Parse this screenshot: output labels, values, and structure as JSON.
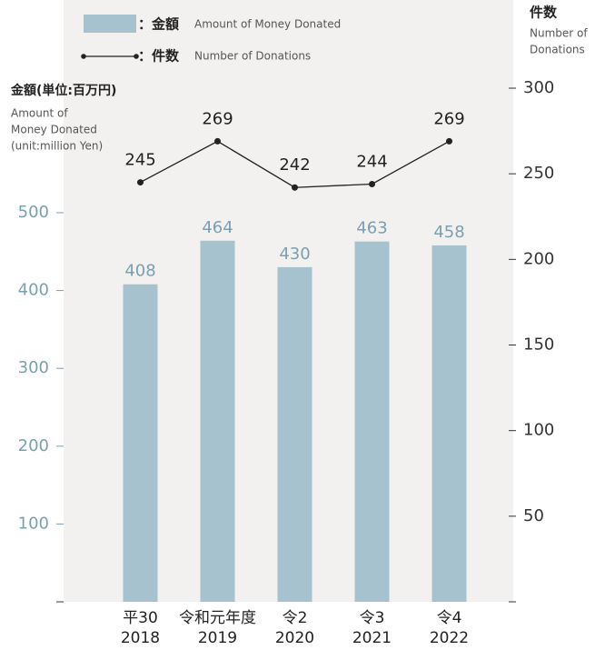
{
  "chart_data": {
    "type": "bar_line",
    "legend": [
      {
        "label": "：金額",
        "label_en": "Amount of Money Donated"
      },
      {
        "label": "：件数",
        "label_en": "Number of Donations"
      }
    ],
    "y_axis_label": "金額(単位:百万円)",
    "y_axis_label_en": [
      "Amount of",
      "Money Donated",
      "(unit:million Yen)"
    ],
    "y2_axis_label": "件数",
    "y2_axis_label_en": [
      "Number of",
      "Donations"
    ],
    "categories": [
      "平30",
      "令和元年度",
      "令2",
      "令3",
      "令4"
    ],
    "years": [
      "2018",
      "2019",
      "2020",
      "2021",
      "2022"
    ],
    "series": [
      {
        "name": "金額",
        "type": "bar",
        "color": "#a7c2cf",
        "values": [
          408,
          464,
          430,
          463,
          458
        ]
      },
      {
        "name": "件数",
        "type": "line",
        "axis": "y2",
        "color": "#222222",
        "values": [
          245,
          269,
          242,
          244,
          269
        ]
      }
    ],
    "ylim": [
      0,
      660
    ],
    "yticks": [
      100,
      200,
      300,
      400,
      500
    ],
    "y2lim": [
      0,
      300
    ],
    "y2ticks": [
      50,
      100,
      150,
      200,
      250,
      300
    ]
  }
}
